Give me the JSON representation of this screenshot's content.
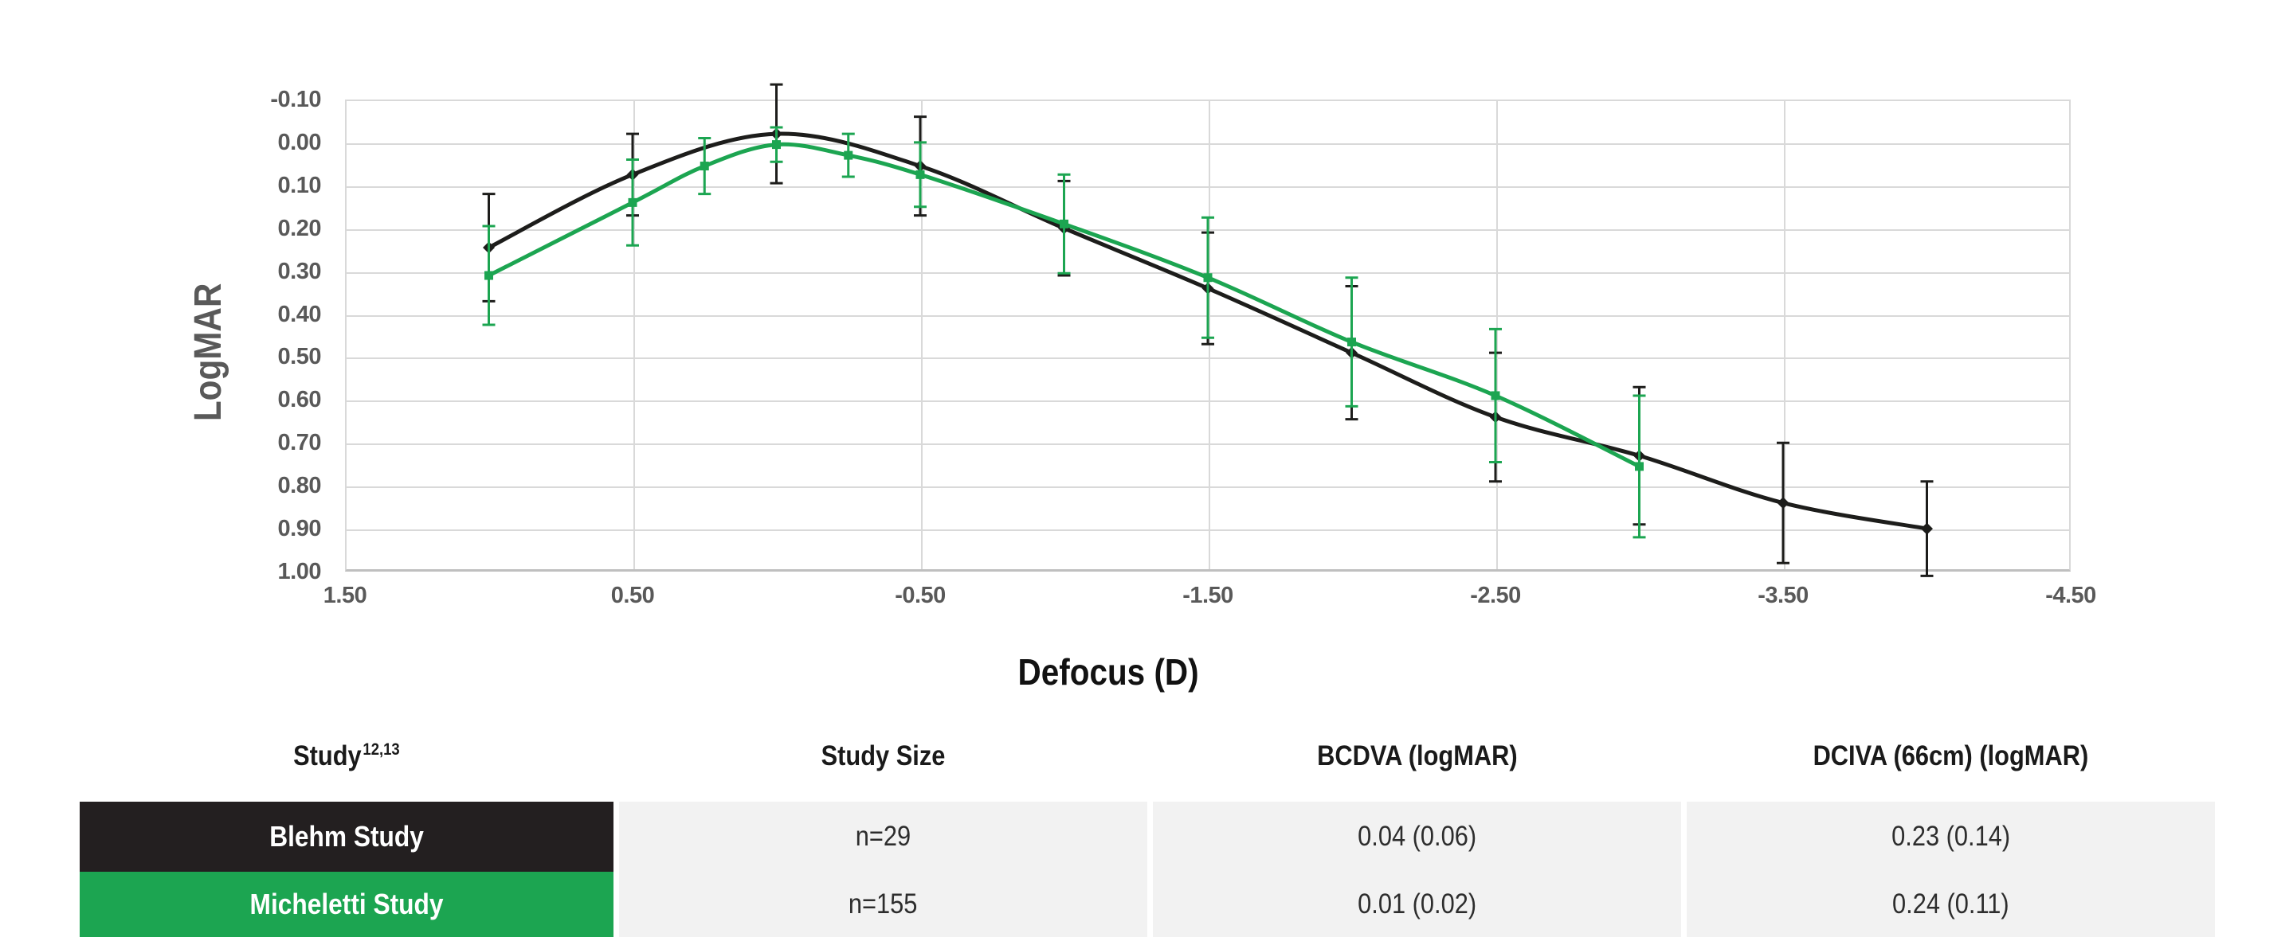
{
  "chart_data": {
    "type": "line",
    "title": "",
    "xlabel": "Defocus (D)",
    "ylabel": "LogMAR",
    "x_ticks": [
      1.5,
      0.5,
      -0.5,
      -1.5,
      -2.5,
      -3.5,
      -4.5
    ],
    "x_tick_labels": [
      "1.50",
      "0.50",
      "-0.50",
      "-1.50",
      "-2.50",
      "-3.50",
      "-4.50"
    ],
    "y_ticks": [
      -0.1,
      0.0,
      0.1,
      0.2,
      0.3,
      0.4,
      0.5,
      0.6,
      0.7,
      0.8,
      0.9,
      1.0
    ],
    "y_tick_labels": [
      "-0.10",
      "0.00",
      "0.10",
      "0.20",
      "0.30",
      "0.40",
      "0.50",
      "0.60",
      "0.70",
      "0.80",
      "0.90",
      "1.00"
    ],
    "xlim": [
      1.5,
      -4.5
    ],
    "ylim": [
      -0.1,
      1.0
    ],
    "y_axis_reversed": true,
    "grid": true,
    "legend_position": "none",
    "vertical_gridlines_at": [
      0.5,
      -0.5,
      -1.5,
      -2.5,
      -3.5
    ],
    "series": [
      {
        "name": "Blehm Study",
        "color": "#1d1d1b",
        "marker": "diamond",
        "x": [
          1.0,
          0.5,
          0.0,
          -0.5,
          -1.0,
          -1.5,
          -2.0,
          -2.5,
          -3.0,
          -3.5,
          -4.0
        ],
        "y": [
          0.245,
          0.075,
          -0.02,
          0.055,
          0.2,
          0.34,
          0.49,
          0.64,
          0.73,
          0.84,
          0.9
        ],
        "err": [
          0.125,
          0.095,
          0.115,
          0.115,
          0.11,
          0.13,
          0.155,
          0.15,
          0.16,
          0.14,
          0.11
        ]
      },
      {
        "name": "Micheletti Study",
        "color": "#1CA551",
        "marker": "square",
        "x": [
          1.0,
          0.5,
          0.25,
          0.0,
          -0.25,
          -0.5,
          -1.0,
          -1.5,
          -2.0,
          -2.5,
          -3.0
        ],
        "y": [
          0.31,
          0.14,
          0.055,
          0.005,
          0.03,
          0.075,
          0.19,
          0.315,
          0.465,
          0.59,
          0.755
        ],
        "err": [
          0.115,
          0.1,
          0.065,
          0.04,
          0.05,
          0.075,
          0.115,
          0.14,
          0.15,
          0.155,
          0.165
        ]
      }
    ]
  },
  "table": {
    "headers": [
      {
        "label": "Study",
        "sup": "12,13"
      },
      {
        "label": "Study Size",
        "sup": ""
      },
      {
        "label": "BCDVA (logMAR)",
        "sup": ""
      },
      {
        "label": "DCIVA (66cm) (logMAR)",
        "sup": ""
      }
    ],
    "rows": [
      {
        "study": "Blehm Study",
        "row_color": "#231f20",
        "study_size": "n=29",
        "bcdva": "0.04 (0.06)",
        "dciva": "0.23 (0.14)"
      },
      {
        "study": "Micheletti Study",
        "row_color": "#1CA551",
        "study_size": "n=155",
        "bcdva": "0.01 (0.02)",
        "dciva": "0.24 (0.11)"
      }
    ]
  },
  "colors": {
    "grid": "#d9d9d9",
    "axis_text": "#595959",
    "cell_bg": "#f2f2f2",
    "axis_bottom": "#bfbfbf"
  }
}
